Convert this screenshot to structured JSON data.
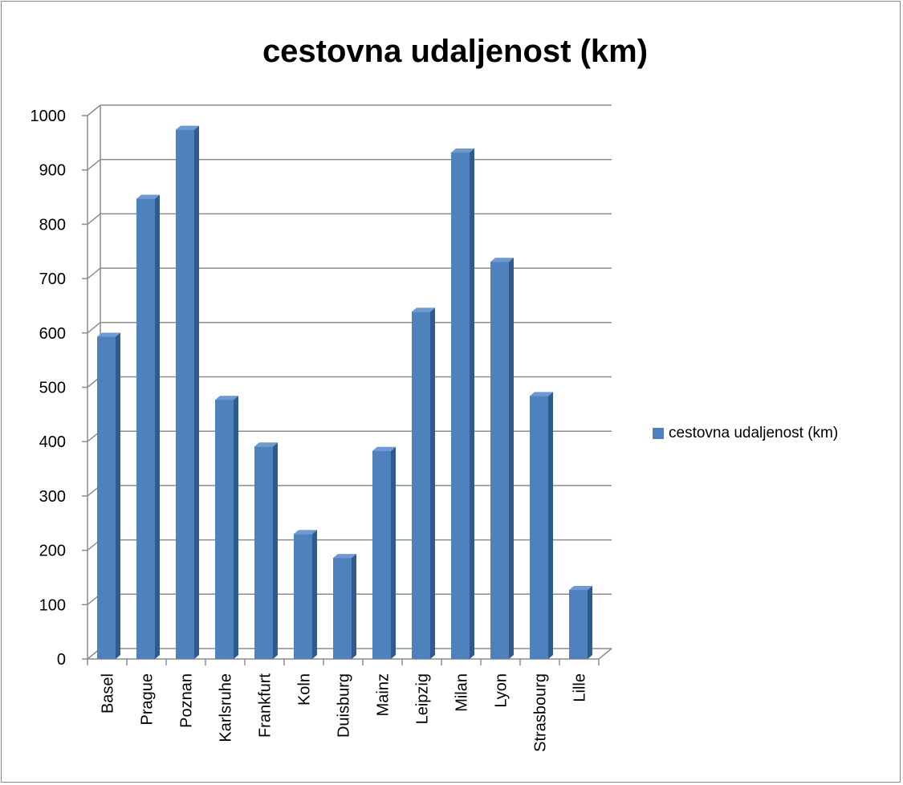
{
  "chart_data": {
    "type": "bar",
    "title": "cestovna udaljenost (km)",
    "xlabel": "",
    "ylabel": "",
    "categories": [
      "Basel",
      "Prague",
      "Poznan",
      "Karlsruhe",
      "Frankfurt",
      "Koln",
      "Duisburg",
      "Mainz",
      "Leipzig",
      "Milan",
      "Lyon",
      "Strasbourg",
      "Lille"
    ],
    "series": [
      {
        "name": "cestovna udaljenost (km)",
        "values": [
          593,
          847,
          974,
          477,
          391,
          230,
          186,
          383,
          639,
          932,
          731,
          484,
          127
        ],
        "color": "#4f81bd"
      }
    ],
    "ylim": [
      0,
      1000
    ],
    "yticks": [
      "0",
      "100",
      "200",
      "300",
      "400",
      "500",
      "600",
      "700",
      "800",
      "900",
      "1000"
    ],
    "grid": true,
    "legend_position": "right",
    "style": "3d-column"
  }
}
